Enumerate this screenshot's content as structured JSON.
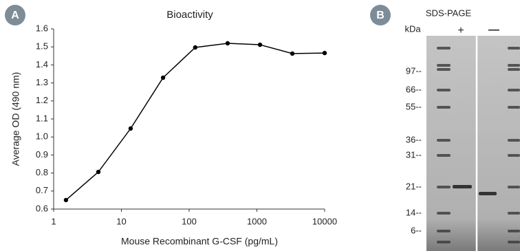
{
  "chart_data": {
    "type": "line",
    "title": "Bioactivity",
    "x_label": "Mouse Recombinant G-CSF (pg/mL)",
    "y_label": "Average OD (490 nm)",
    "x": [
      1.52,
      4.57,
      13.7,
      41.2,
      123,
      370,
      1111,
      3333,
      10000
    ],
    "series": [
      {
        "name": "Bioactivity",
        "color": "#000000",
        "values": [
          0.65,
          0.806,
          1.047,
          1.329,
          1.497,
          1.52,
          1.512,
          1.463,
          1.466
        ]
      }
    ],
    "x_scale": "log",
    "xlim": [
      1,
      10000
    ],
    "xticks": [
      1,
      10,
      100,
      1000,
      10000
    ],
    "ylim": [
      0.6,
      1.6
    ],
    "yticks": [
      0.6,
      0.7,
      0.8,
      0.9,
      {
        "value": 1,
        "label": "1.0"
      },
      1.1,
      1.2,
      1.3,
      1.4,
      1.5,
      1.6
    ],
    "grid": false,
    "panel": "A"
  },
  "gel": {
    "panel": "B",
    "title": "SDS-PAGE",
    "unit": "kDa",
    "lanes": [
      "+",
      "—"
    ],
    "markers": [
      "97--",
      "66--",
      "55--",
      "36--",
      "31--",
      "21--",
      "14--",
      "6--"
    ]
  }
}
